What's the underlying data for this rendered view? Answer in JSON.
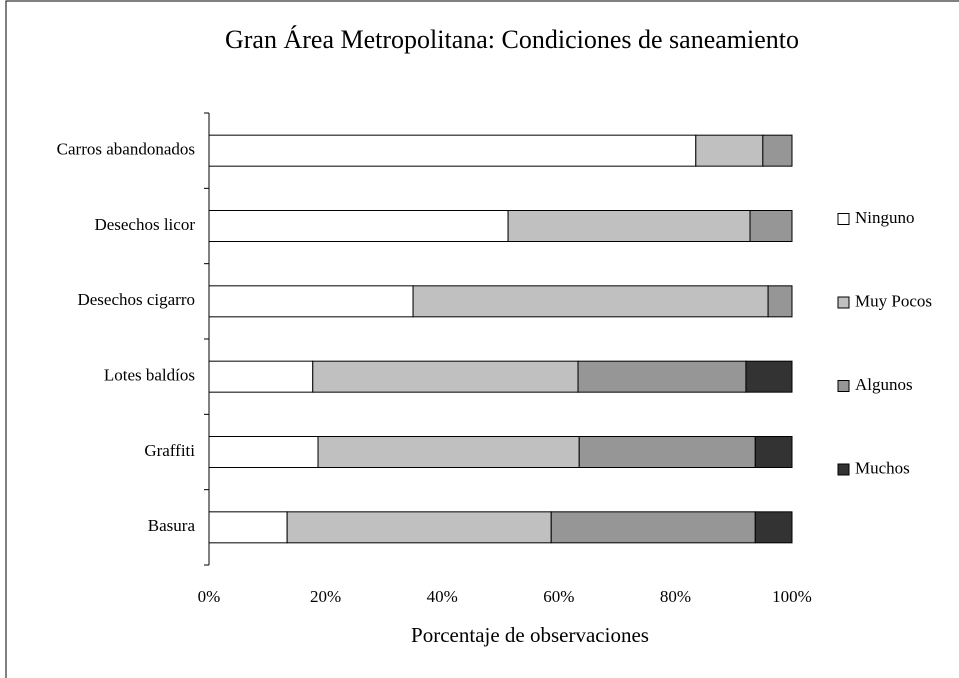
{
  "chart_data": {
    "type": "stacked_barh",
    "title": "Gran Área Metropolitana: Condiciones de saneamiento",
    "x_label": "Porcentaje de observaciones",
    "categories": [
      "Carros abandonados",
      "Desechos licor",
      "Desechos cigarro",
      "Lotes baldíos",
      "Graffiti",
      "Basura"
    ],
    "series": [
      {
        "name": "Ninguno",
        "color": "#ffffff",
        "values": [
          83.5,
          51.3,
          35.0,
          17.8,
          18.7,
          13.4
        ]
      },
      {
        "name": "Muy Pocos",
        "color": "#c0c0c0",
        "values": [
          11.5,
          41.5,
          60.9,
          45.5,
          44.8,
          45.3
        ]
      },
      {
        "name": "Algunos",
        "color": "#969696",
        "values": [
          5.0,
          7.2,
          4.1,
          28.8,
          30.2,
          35.0
        ]
      },
      {
        "name": "Muchos",
        "color": "#333333",
        "values": [
          0,
          0,
          0,
          7.9,
          6.3,
          6.3
        ]
      }
    ],
    "xlim": [
      0,
      100
    ],
    "xticks": [
      {
        "value": 0,
        "label": "0%"
      },
      {
        "value": 20,
        "label": "20%"
      },
      {
        "value": 40,
        "label": "40%"
      },
      {
        "value": 60,
        "label": "60%"
      },
      {
        "value": 80,
        "label": "80%"
      },
      {
        "value": 100,
        "label": "100%"
      }
    ],
    "legend": "right"
  }
}
